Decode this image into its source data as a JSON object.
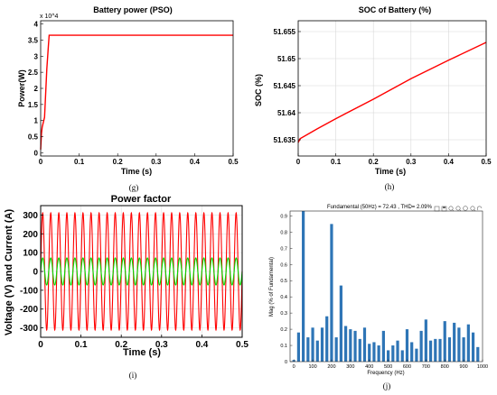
{
  "chart_data": [
    {
      "panel": "(g)",
      "type": "line",
      "title": "Battery power (PSO)",
      "xlabel": "Time (s)",
      "ylabel": "Power(W)",
      "exponent_label": "x 10^4",
      "x_ticks": [
        "0",
        "0.1",
        "0.2",
        "0.3",
        "0.4",
        "0.5"
      ],
      "y_ticks": [
        "0",
        "0.5",
        "1",
        "1.5",
        "2",
        "2.5",
        "3",
        "3.5",
        "4"
      ],
      "xlim": [
        0,
        0.5
      ],
      "ylim": [
        -0.1,
        4.1
      ],
      "grid": false,
      "series": [
        {
          "color": "#ff0000",
          "x": [
            0,
            0.002,
            0.004,
            0.01,
            0.016,
            0.02,
            0.022,
            0.5
          ],
          "y": [
            0.1,
            0.6,
            0.8,
            1.1,
            2.6,
            3.3,
            3.65,
            3.65
          ]
        }
      ]
    },
    {
      "panel": "(h)",
      "type": "line",
      "title": "SOC of Battery (%)",
      "xlabel": "Time (s)",
      "ylabel": "SOC (%)",
      "x_ticks": [
        "0",
        "0.1",
        "0.2",
        "0.3",
        "0.4",
        "0.5"
      ],
      "y_ticks": [
        "51.635",
        "51.64",
        "51.645",
        "51.65",
        "51.655"
      ],
      "xlim": [
        0,
        0.5
      ],
      "ylim": [
        51.632,
        51.657
      ],
      "grid": true,
      "series": [
        {
          "color": "#ff0000",
          "x": [
            0,
            0.005,
            0.05,
            0.1,
            0.2,
            0.3,
            0.4,
            0.5
          ],
          "y": [
            51.6345,
            51.6352,
            51.637,
            51.6389,
            51.6425,
            51.6463,
            51.6497,
            51.653
          ]
        }
      ]
    },
    {
      "panel": "(i)",
      "type": "line",
      "title": "Power factor",
      "xlabel": "Time (s)",
      "ylabel": "Voltage (V) and Current (A)",
      "x_ticks": [
        "0",
        "0.1",
        "0.2",
        "0.3",
        "0.4",
        "0.5"
      ],
      "y_ticks": [
        "300",
        "200",
        "100",
        "0",
        "-100",
        "-200",
        "-300"
      ],
      "xlim": [
        0,
        0.5
      ],
      "ylim": [
        -350,
        350
      ],
      "grid": true,
      "frequency_hz": 50,
      "series": [
        {
          "color": "#ff0000",
          "amplitude": 311
        },
        {
          "color": "#00dd00",
          "amplitude": 72
        }
      ]
    },
    {
      "panel": "(j)",
      "type": "bar",
      "title": "Fundamental (50Hz) = 72.43 , THD= 2.09%",
      "xlabel": "Frequency (Hz)",
      "ylabel": "Mag (% of Fundamental)",
      "x_ticks": [
        "0",
        "100",
        "200",
        "300",
        "400",
        "500",
        "600",
        "700",
        "800",
        "900",
        "1000"
      ],
      "y_ticks": [
        "0",
        "0.1",
        "0.2",
        "0.3",
        "0.4",
        "0.5",
        "0.6",
        "0.7",
        "0.8",
        "0.9"
      ],
      "xlim": [
        -20,
        1000
      ],
      "ylim": [
        0,
        0.93
      ],
      "color": "#2e75b6",
      "x": [
        0,
        25,
        50,
        75,
        100,
        125,
        150,
        175,
        200,
        225,
        250,
        275,
        300,
        325,
        350,
        375,
        400,
        425,
        450,
        475,
        500,
        525,
        550,
        575,
        600,
        625,
        650,
        675,
        700,
        725,
        750,
        775,
        800,
        825,
        850,
        875,
        900,
        925,
        950,
        975,
        1000
      ],
      "values": [
        0.01,
        0.18,
        0.93,
        0.15,
        0.21,
        0.13,
        0.21,
        0.28,
        0.85,
        0.15,
        0.47,
        0.22,
        0.2,
        0.19,
        0.14,
        0.21,
        0.11,
        0.12,
        0.1,
        0.19,
        0.07,
        0.1,
        0.13,
        0.07,
        0.2,
        0.12,
        0.08,
        0.19,
        0.26,
        0.13,
        0.14,
        0.14,
        0.25,
        0.15,
        0.24,
        0.21,
        0.15,
        0.23,
        0.18,
        0.09,
        0
      ]
    }
  ],
  "captions": {
    "g": "(g)",
    "h": "(h)",
    "i": "(i)",
    "j": "(j)"
  },
  "toolbar_icons": [
    "dock-icon",
    "save-icon",
    "zoom-in-icon",
    "zoom-out-icon",
    "pan-icon",
    "data-cursor-icon",
    "rotate-icon"
  ]
}
